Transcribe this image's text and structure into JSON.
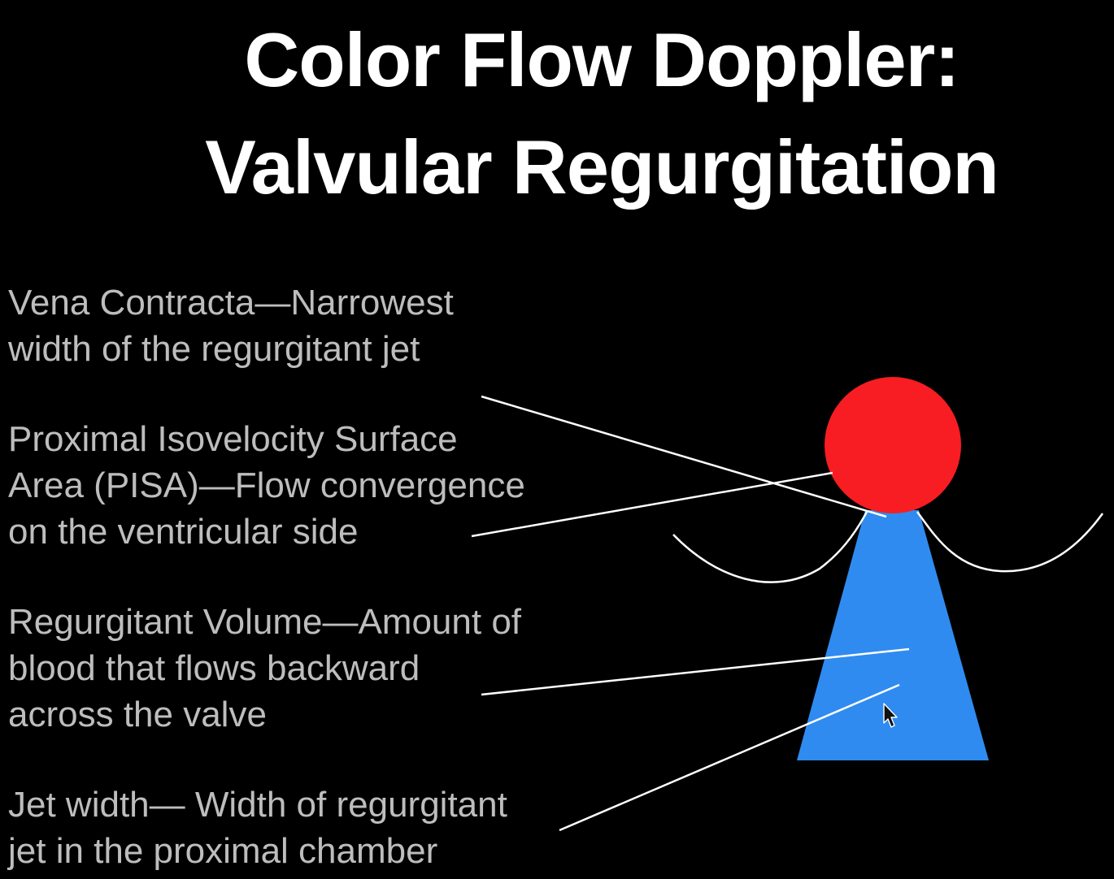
{
  "slide": {
    "title_lines": [
      "Color Flow Doppler:",
      "Valvular Regurgitation"
    ],
    "labels": [
      {
        "id": "vena-contracta",
        "lines": [
          "Vena Contracta—Narrowest",
          "width of the regurgitant jet"
        ]
      },
      {
        "id": "pisa",
        "lines": [
          "Proximal Isovelocity Surface",
          "Area (PISA)—Flow convergence",
          "on the ventricular side"
        ]
      },
      {
        "id": "regurgitant-volume",
        "lines": [
          "Regurgitant Volume—Amount of",
          "blood that flows backward",
          "across the valve"
        ]
      },
      {
        "id": "jet-width",
        "lines": [
          "Jet width— Width of regurgitant",
          "jet in the proximal chamber"
        ]
      }
    ]
  },
  "colors": {
    "background": "#000000",
    "title": "#ffffff",
    "label_text": "#bdbdbd",
    "pisa_circle": "#f71d22",
    "jet_triangle": "#2f8bf0",
    "leader_lines": "#ffffff"
  },
  "icons": {
    "cursor": "mouse-pointer-icon"
  }
}
